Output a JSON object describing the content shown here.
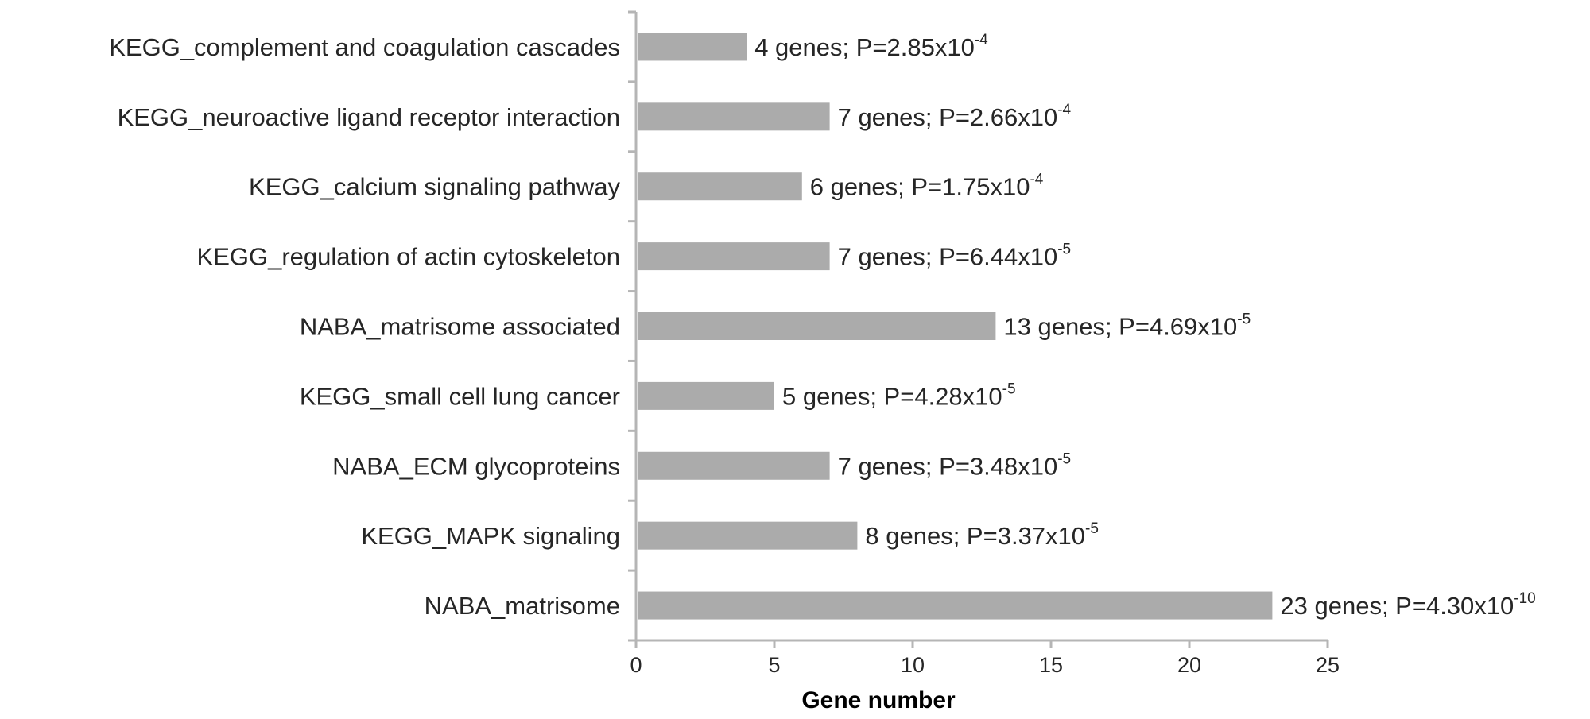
{
  "chart_data": {
    "type": "bar",
    "orientation": "horizontal",
    "title": "",
    "xlabel": "Gene number",
    "ylabel": "",
    "xlim": [
      0,
      25
    ],
    "xticks": [
      0,
      5,
      10,
      15,
      20,
      25
    ],
    "grid": false,
    "legend": "none",
    "bar_color": "#ababab",
    "axis_color": "#b5b5b5",
    "categories": [
      "KEGG_complement and coagulation cascades",
      "KEGG_neuroactive ligand receptor interaction",
      "KEGG_calcium signaling pathway",
      "KEGG_regulation of actin cytoskeleton",
      "NABA_matrisome associated",
      "KEGG_small cell lung cancer",
      "NABA_ECM glycoproteins",
      "KEGG_MAPK signaling",
      "NABA_matrisome"
    ],
    "values": [
      4,
      7,
      6,
      7,
      13,
      5,
      7,
      8,
      23
    ],
    "data_labels": [
      {
        "text": "4 genes; P=2.85x10",
        "exp": "-4"
      },
      {
        "text": "7 genes; P=2.66x10",
        "exp": "-4"
      },
      {
        "text": "6 genes; P=1.75x10",
        "exp": "-4"
      },
      {
        "text": "7 genes; P=6.44x10",
        "exp": "-5"
      },
      {
        "text": "13 genes; P=4.69x10",
        "exp": "-5"
      },
      {
        "text": "5 genes; P=4.28x10",
        "exp": "-5"
      },
      {
        "text": "7 genes; P=3.48x10",
        "exp": "-5"
      },
      {
        "text": "8 genes; P=3.37x10",
        "exp": "-5"
      },
      {
        "text": "23 genes; P=4.30x10",
        "exp": "-10"
      }
    ]
  }
}
